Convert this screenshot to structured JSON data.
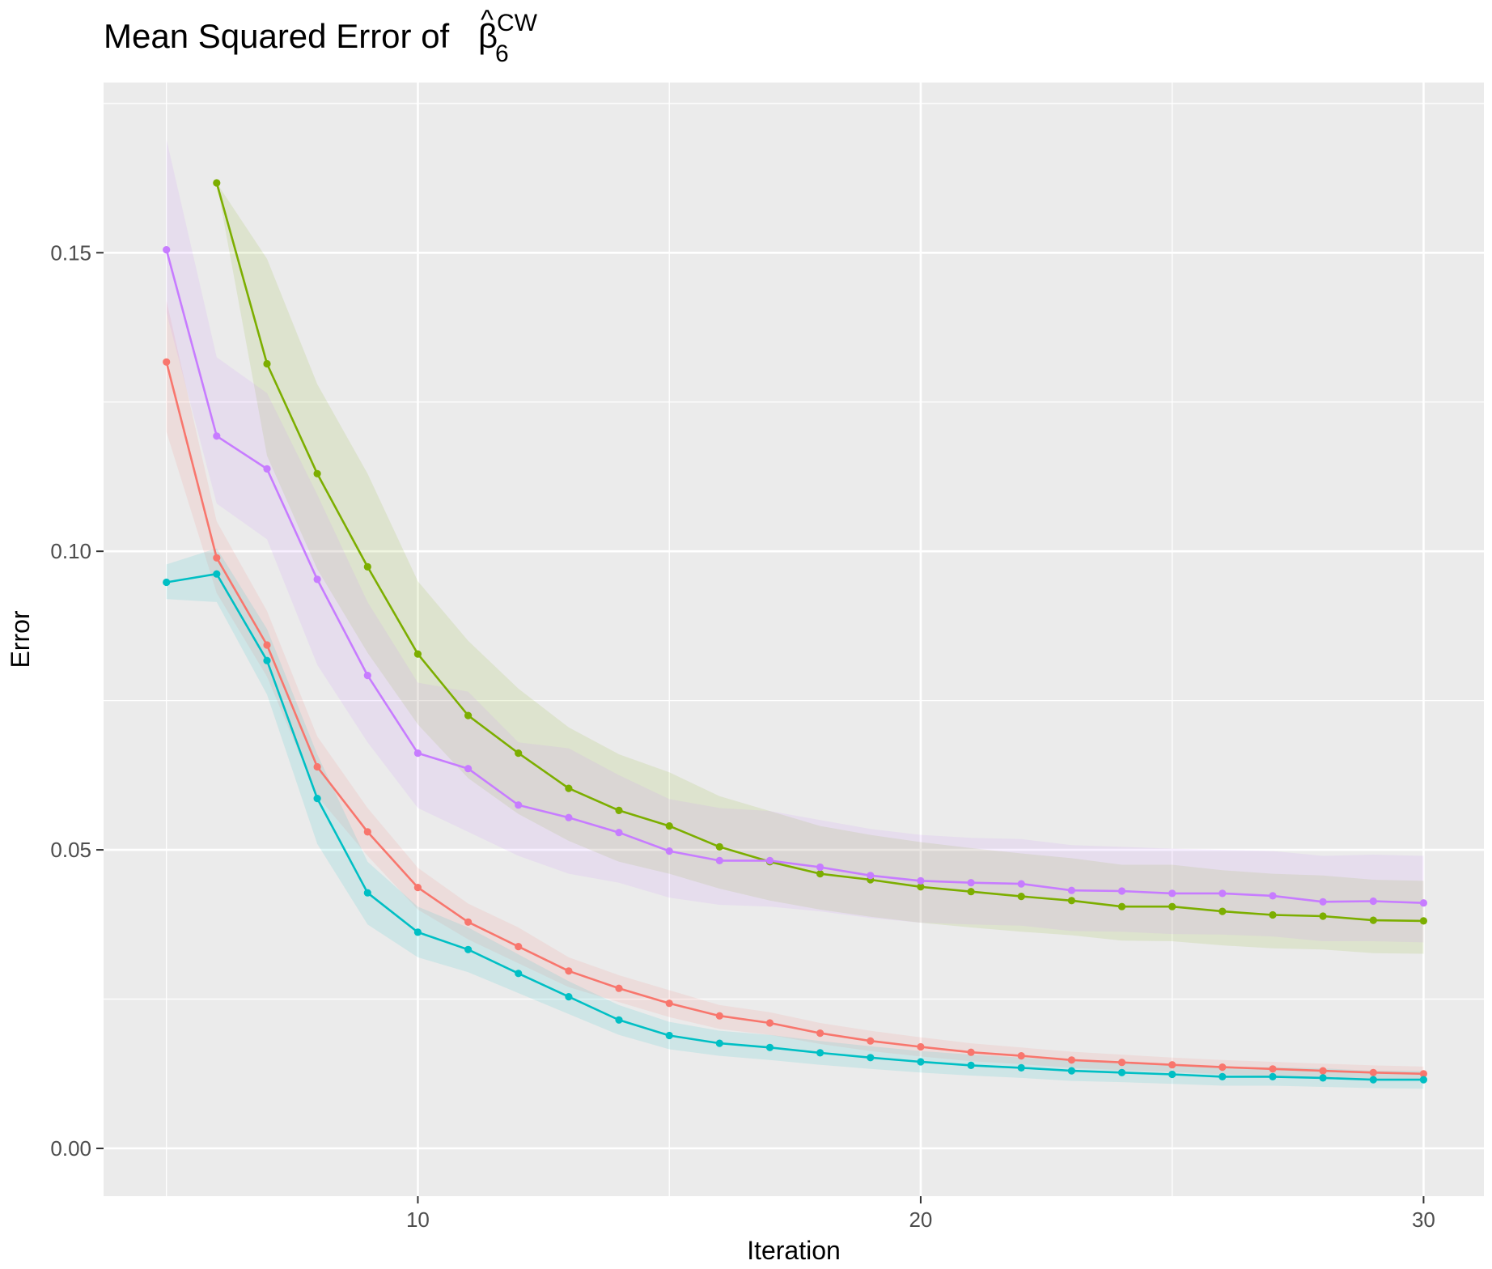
{
  "chart_data": {
    "type": "line",
    "title": {
      "prefix": "Mean Squared Error of ",
      "symbol": "β",
      "accent": "^",
      "subscript": "6",
      "superscript": "CW"
    },
    "xlabel": "Iteration",
    "ylabel": "Error",
    "xlim": [
      3.75,
      31.2
    ],
    "ylim": [
      -0.008,
      0.1785
    ],
    "x_ticks": [
      10,
      20,
      30
    ],
    "x_tick_labels": [
      "10",
      "20",
      "30"
    ],
    "y_ticks": [
      0.0,
      0.05,
      0.1,
      0.15
    ],
    "y_tick_labels": [
      "0.00",
      "0.05",
      "0.10",
      "0.15"
    ],
    "grid": true,
    "legend": "none",
    "background": "#ebebeb",
    "series": [
      {
        "color": "#f8766d",
        "x": [
          5,
          6,
          7,
          8,
          9,
          10,
          11,
          12,
          13,
          14,
          15,
          16,
          17,
          18,
          19,
          20,
          21,
          22,
          23,
          24,
          25,
          26,
          27,
          28,
          29,
          30
        ],
        "y": [
          0.1317,
          0.0989,
          0.0843,
          0.0639,
          0.053,
          0.0437,
          0.0379,
          0.0338,
          0.0297,
          0.0268,
          0.0243,
          0.0222,
          0.021,
          0.0193,
          0.018,
          0.017,
          0.0161,
          0.0155,
          0.0148,
          0.0144,
          0.014,
          0.0136,
          0.0133,
          0.013,
          0.0127,
          0.0125
        ],
        "band_lower": [
          0.12,
          0.093,
          0.079,
          0.059,
          0.049,
          0.04,
          0.035,
          0.031,
          0.027,
          0.0245,
          0.022,
          0.02,
          0.019,
          0.0175,
          0.0163,
          0.0154,
          0.0146,
          0.0141,
          0.0135,
          0.0131,
          0.0128,
          0.0124,
          0.0121,
          0.0118,
          0.0116,
          0.0114
        ],
        "band_upper": [
          0.142,
          0.105,
          0.09,
          0.069,
          0.057,
          0.047,
          0.041,
          0.037,
          0.032,
          0.029,
          0.0265,
          0.024,
          0.0228,
          0.021,
          0.0197,
          0.0186,
          0.0176,
          0.0169,
          0.0162,
          0.0157,
          0.0152,
          0.0148,
          0.0145,
          0.0142,
          0.0139,
          0.0137
        ]
      },
      {
        "color": "#7cae00",
        "x": [
          6,
          7,
          8,
          9,
          10,
          11,
          12,
          13,
          14,
          15,
          16,
          17,
          18,
          19,
          20,
          21,
          22,
          23,
          24,
          25,
          26,
          27,
          28,
          29,
          30
        ],
        "y": [
          0.1617,
          0.1314,
          0.113,
          0.0974,
          0.0828,
          0.0725,
          0.0662,
          0.0603,
          0.0566,
          0.054,
          0.0505,
          0.048,
          0.046,
          0.045,
          0.0438,
          0.043,
          0.0422,
          0.0415,
          0.0405,
          0.0405,
          0.0397,
          0.0391,
          0.0389,
          0.0382,
          0.0381
        ],
        "band_lower": [
          0.1617,
          0.116,
          0.097,
          0.083,
          0.071,
          0.062,
          0.056,
          0.0515,
          0.048,
          0.046,
          0.0435,
          0.0415,
          0.04,
          0.0388,
          0.0378,
          0.037,
          0.0363,
          0.0357,
          0.0348,
          0.0347,
          0.034,
          0.0335,
          0.0333,
          0.0327,
          0.0326
        ],
        "band_upper": [
          0.1617,
          0.149,
          0.128,
          0.113,
          0.095,
          0.085,
          0.077,
          0.0705,
          0.066,
          0.063,
          0.059,
          0.0565,
          0.054,
          0.0525,
          0.0513,
          0.0503,
          0.0494,
          0.0486,
          0.0475,
          0.0475,
          0.0466,
          0.046,
          0.0457,
          0.045,
          0.0448
        ]
      },
      {
        "color": "#00bfc4",
        "x": [
          5,
          6,
          7,
          8,
          9,
          10,
          11,
          12,
          13,
          14,
          15,
          16,
          17,
          18,
          19,
          20,
          21,
          22,
          23,
          24,
          25,
          26,
          27,
          28,
          29,
          30
        ],
        "y": [
          0.0948,
          0.0962,
          0.0817,
          0.0586,
          0.0428,
          0.0362,
          0.0333,
          0.0293,
          0.0254,
          0.0215,
          0.0189,
          0.0176,
          0.0169,
          0.016,
          0.0152,
          0.0145,
          0.0139,
          0.0135,
          0.013,
          0.0127,
          0.0124,
          0.012,
          0.012,
          0.0118,
          0.0115,
          0.0115
        ],
        "band_lower": [
          0.092,
          0.0915,
          0.076,
          0.051,
          0.0375,
          0.032,
          0.0295,
          0.026,
          0.0225,
          0.019,
          0.0166,
          0.0155,
          0.0148,
          0.014,
          0.0133,
          0.0127,
          0.0122,
          0.0118,
          0.0113,
          0.0111,
          0.0108,
          0.0105,
          0.0105,
          0.0103,
          0.0101,
          0.01
        ],
        "band_upper": [
          0.0978,
          0.1005,
          0.087,
          0.066,
          0.048,
          0.0405,
          0.037,
          0.0325,
          0.028,
          0.024,
          0.0212,
          0.0197,
          0.019,
          0.018,
          0.0171,
          0.0163,
          0.0157,
          0.0152,
          0.0147,
          0.0143,
          0.014,
          0.0136,
          0.0136,
          0.0134,
          0.013,
          0.013
        ]
      },
      {
        "color": "#c77cff",
        "x": [
          5,
          6,
          7,
          8,
          9,
          10,
          11,
          12,
          13,
          14,
          15,
          16,
          17,
          18,
          19,
          20,
          21,
          22,
          23,
          24,
          25,
          26,
          27,
          28,
          29,
          30
        ],
        "y": [
          0.1505,
          0.1193,
          0.1138,
          0.0953,
          0.0792,
          0.0662,
          0.0636,
          0.0575,
          0.0554,
          0.0529,
          0.0498,
          0.0482,
          0.0482,
          0.0471,
          0.0457,
          0.0448,
          0.0445,
          0.0443,
          0.0432,
          0.0431,
          0.0427,
          0.0427,
          0.0423,
          0.0413,
          0.0414,
          0.0411
        ],
        "band_lower": [
          0.14,
          0.108,
          0.102,
          0.081,
          0.068,
          0.057,
          0.053,
          0.049,
          0.046,
          0.0445,
          0.042,
          0.0408,
          0.0405,
          0.0397,
          0.0386,
          0.0378,
          0.0375,
          0.0373,
          0.0364,
          0.0363,
          0.0359,
          0.0358,
          0.0355,
          0.0347,
          0.0347,
          0.0345
        ],
        "band_upper": [
          0.169,
          0.1325,
          0.1265,
          0.1095,
          0.0915,
          0.078,
          0.0765,
          0.068,
          0.067,
          0.0625,
          0.0585,
          0.057,
          0.0565,
          0.055,
          0.0535,
          0.0525,
          0.052,
          0.0518,
          0.0508,
          0.0505,
          0.0502,
          0.05,
          0.0498,
          0.049,
          0.0492,
          0.049
        ]
      }
    ]
  }
}
